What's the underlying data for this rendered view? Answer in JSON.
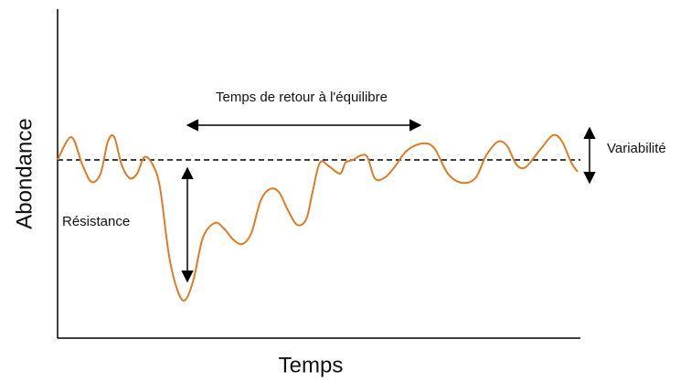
{
  "axes": {
    "y_label": "Abondance",
    "x_label": "Temps"
  },
  "annotations": {
    "return_time": "Temps de retour à l'équilibre",
    "resistance": "Résistance",
    "variability": "Variabilité"
  }
}
